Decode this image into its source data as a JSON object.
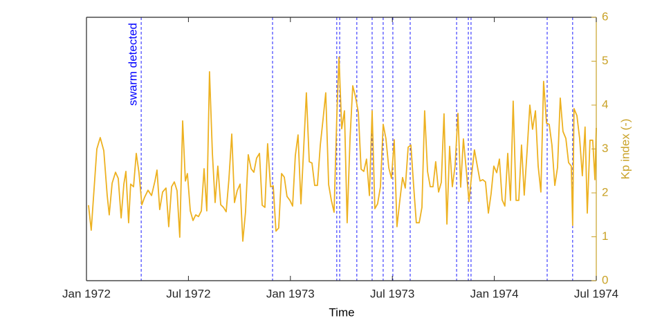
{
  "chart_data": {
    "type": "line",
    "xlabel": "Time",
    "ylabel": "Kp index (-)",
    "xlim": [
      0,
      30
    ],
    "xticks": [
      {
        "value": 0,
        "label": "Jan 1972"
      },
      {
        "value": 6,
        "label": "Jul 1972"
      },
      {
        "value": 12,
        "label": "Jan 1973"
      },
      {
        "value": 18,
        "label": "Jul 1973"
      },
      {
        "value": 24,
        "label": "Jan 1974"
      },
      {
        "value": 30,
        "label": "Jul 1974"
      }
    ],
    "ylim": [
      0,
      6
    ],
    "yticks": [
      0,
      1,
      2,
      3,
      4,
      5,
      6
    ],
    "y_axis_side": "right",
    "axis_color": "#c9a227",
    "x": [
      0.12,
      0.28,
      0.61,
      0.81,
      1.02,
      1.22,
      1.34,
      1.51,
      1.71,
      1.87,
      2.04,
      2.2,
      2.32,
      2.48,
      2.6,
      2.77,
      2.93,
      3.09,
      3.26,
      3.42,
      3.62,
      3.83,
      4.03,
      4.15,
      4.31,
      4.48,
      4.68,
      4.84,
      5.01,
      5.17,
      5.33,
      5.49,
      5.66,
      5.82,
      5.94,
      6.11,
      6.27,
      6.43,
      6.59,
      6.76,
      6.92,
      7.08,
      7.24,
      7.41,
      7.57,
      7.73,
      7.9,
      8.06,
      8.22,
      8.38,
      8.55,
      8.71,
      8.87,
      9.04,
      9.2,
      9.36,
      9.52,
      9.69,
      9.85,
      10.01,
      10.18,
      10.34,
      10.5,
      10.66,
      10.83,
      10.99,
      11.15,
      11.31,
      11.48,
      11.64,
      11.8,
      11.97,
      12.13,
      12.29,
      12.45,
      12.62,
      12.78,
      12.94,
      13.11,
      13.27,
      13.43,
      13.59,
      13.76,
      13.92,
      14.08,
      14.25,
      14.41,
      14.57,
      14.73,
      14.86,
      15.02,
      15.18,
      15.34,
      15.51,
      15.67,
      15.83,
      16.0,
      16.16,
      16.32,
      16.48,
      16.65,
      16.81,
      16.97,
      17.13,
      17.3,
      17.46,
      17.62,
      17.79,
      17.95,
      18.11,
      18.27,
      18.44,
      18.6,
      18.76,
      18.93,
      19.09,
      19.25,
      19.41,
      19.58,
      19.74,
      19.9,
      20.07,
      20.23,
      20.39,
      20.55,
      20.72,
      20.88,
      21.04,
      21.21,
      21.37,
      21.53,
      21.69,
      21.86,
      22.02,
      22.18,
      22.35,
      22.51,
      22.67,
      22.83,
      23.0,
      23.16,
      23.32,
      23.48,
      23.65,
      23.81,
      23.97,
      24.14,
      24.3,
      24.46,
      24.62,
      24.79,
      24.95,
      25.11,
      25.28,
      25.44,
      25.6,
      25.76,
      25.93,
      26.09,
      26.25,
      26.42,
      26.58,
      26.74,
      26.9,
      27.07,
      27.23,
      27.39,
      27.56,
      27.72,
      27.88,
      28.04,
      28.21,
      28.37,
      28.53,
      28.61,
      28.69,
      28.86,
      29.02,
      29.18,
      29.34,
      29.47,
      29.63,
      29.79,
      29.92,
      30.0
    ],
    "series": [
      {
        "color": "#edb120",
        "values": [
          1.72,
          1.15,
          3.0,
          3.26,
          2.96,
          1.94,
          1.5,
          2.22,
          2.47,
          2.33,
          1.43,
          2.2,
          2.49,
          1.32,
          2.2,
          2.14,
          2.9,
          2.46,
          1.73,
          1.9,
          2.06,
          1.94,
          2.27,
          2.52,
          1.62,
          2.02,
          2.11,
          1.23,
          2.14,
          2.25,
          2.05,
          0.99,
          3.64,
          2.27,
          2.44,
          1.59,
          1.37,
          1.5,
          1.46,
          1.59,
          2.55,
          1.59,
          4.76,
          2.9,
          1.78,
          2.61,
          1.73,
          1.67,
          1.57,
          2.3,
          3.34,
          1.78,
          2.05,
          2.2,
          0.9,
          1.57,
          2.87,
          2.55,
          2.47,
          2.79,
          2.9,
          1.72,
          1.67,
          3.12,
          2.14,
          2.16,
          1.13,
          1.2,
          2.44,
          2.36,
          1.92,
          1.83,
          1.7,
          2.85,
          3.32,
          1.75,
          3.0,
          4.28,
          2.71,
          2.68,
          2.17,
          2.17,
          3.09,
          3.67,
          4.28,
          2.19,
          1.83,
          1.56,
          3.72,
          5.09,
          3.46,
          3.87,
          1.32,
          3.24,
          4.44,
          4.19,
          3.83,
          2.54,
          2.49,
          2.77,
          1.94,
          3.87,
          1.64,
          1.75,
          2.14,
          3.56,
          3.24,
          2.57,
          2.33,
          3.21,
          1.23,
          1.83,
          2.35,
          2.11,
          3.04,
          3.09,
          2.17,
          1.32,
          1.32,
          1.67,
          3.87,
          2.49,
          2.14,
          2.14,
          2.71,
          2.02,
          2.24,
          3.8,
          1.29,
          3.06,
          2.14,
          2.61,
          3.81,
          2.13,
          3.23,
          2.52,
          1.8,
          2.43,
          2.98,
          2.61,
          2.27,
          2.3,
          2.25,
          1.54,
          1.98,
          2.61,
          2.46,
          2.77,
          1.84,
          1.7,
          2.9,
          1.83,
          4.09,
          1.83,
          1.83,
          3.09,
          1.95,
          2.96,
          4.0,
          3.45,
          3.87,
          2.61,
          2.02,
          4.54,
          3.59,
          3.56,
          3.09,
          2.17,
          2.58,
          4.16,
          3.4,
          3.24,
          2.69,
          2.61,
          1.26,
          3.92,
          3.76,
          3.24,
          2.39,
          3.5,
          1.54,
          3.2,
          3.2,
          2.3,
          3.48
        ]
      }
    ],
    "event_lines": {
      "color": "#0000ff",
      "label": "swarm detected",
      "x": [
        3.22,
        10.95,
        14.73,
        14.9,
        15.91,
        16.81,
        17.46,
        18.03,
        19.05,
        21.78,
        22.47,
        22.63,
        27.11,
        28.61
      ]
    }
  }
}
